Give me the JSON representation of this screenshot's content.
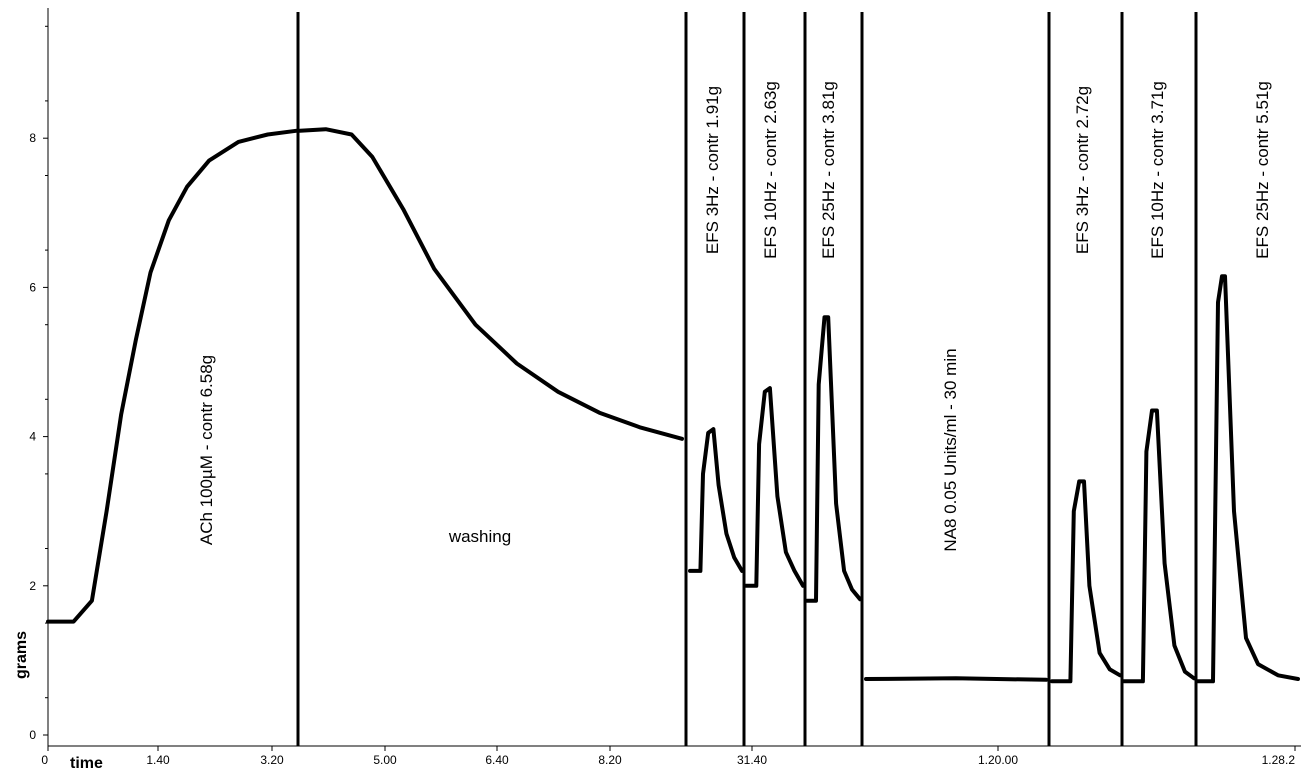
{
  "chart_data": {
    "type": "line",
    "title": "",
    "xlabel": "time",
    "ylabel": "grams",
    "ylim": [
      0,
      9.5
    ],
    "y_ticks": [
      0,
      2,
      4,
      6,
      8
    ],
    "x_tick_labels": [
      "0",
      "1.40",
      "3.20",
      "5.00",
      "6.40",
      "8.20",
      "31.40",
      "1.20.00",
      "1.28.2"
    ],
    "grid": false,
    "segments": [
      {
        "label": "ACh 100µM - contr 6.58g",
        "points": [
          [
            0,
            1.52
          ],
          [
            0.35,
            1.52
          ],
          [
            0.6,
            1.8
          ],
          [
            0.8,
            3.0
          ],
          [
            1.0,
            4.3
          ],
          [
            1.2,
            5.3
          ],
          [
            1.4,
            6.2
          ],
          [
            1.65,
            6.9
          ],
          [
            1.9,
            7.35
          ],
          [
            2.2,
            7.7
          ],
          [
            2.6,
            7.95
          ],
          [
            3.0,
            8.05
          ],
          [
            3.4,
            8.1
          ]
        ]
      },
      {
        "label": "washing",
        "points": [
          [
            0,
            8.1
          ],
          [
            0.5,
            8.12
          ],
          [
            1.0,
            8.05
          ],
          [
            1.4,
            7.75
          ],
          [
            2.0,
            7.05
          ],
          [
            2.6,
            6.25
          ],
          [
            3.4,
            5.5
          ],
          [
            4.2,
            4.98
          ],
          [
            5.0,
            4.6
          ],
          [
            5.8,
            4.32
          ],
          [
            6.6,
            4.12
          ],
          [
            7.4,
            3.97
          ]
        ]
      },
      {
        "label": "EFS 3Hz - contr 1.91g",
        "points": [
          [
            0,
            2.2
          ],
          [
            0.2,
            2.2
          ],
          [
            0.25,
            3.5
          ],
          [
            0.35,
            4.05
          ],
          [
            0.45,
            4.1
          ],
          [
            0.55,
            3.35
          ],
          [
            0.7,
            2.7
          ],
          [
            0.85,
            2.38
          ],
          [
            1.0,
            2.2
          ]
        ]
      },
      {
        "label": "EFS 10Hz - contr 2.63g",
        "points": [
          [
            0,
            2.0
          ],
          [
            0.18,
            2.0
          ],
          [
            0.23,
            3.9
          ],
          [
            0.33,
            4.6
          ],
          [
            0.42,
            4.65
          ],
          [
            0.55,
            3.2
          ],
          [
            0.7,
            2.45
          ],
          [
            0.85,
            2.2
          ],
          [
            1.0,
            2.0
          ]
        ]
      },
      {
        "label": "EFS 25Hz - contr 3.81g",
        "points": [
          [
            0,
            1.8
          ],
          [
            0.17,
            1.8
          ],
          [
            0.22,
            4.7
          ],
          [
            0.33,
            5.6
          ],
          [
            0.4,
            5.6
          ],
          [
            0.55,
            3.1
          ],
          [
            0.7,
            2.2
          ],
          [
            0.85,
            1.95
          ],
          [
            1.0,
            1.82
          ]
        ]
      },
      {
        "label": "NA8 0.05 Units/ml - 30 min",
        "points": [
          [
            0,
            0.75
          ],
          [
            0.5,
            0.76
          ],
          [
            1.0,
            0.74
          ]
        ]
      },
      {
        "label": "EFS 3Hz - contr 2.72g",
        "points": [
          [
            0,
            0.72
          ],
          [
            0.27,
            0.72
          ],
          [
            0.32,
            3.0
          ],
          [
            0.4,
            3.4
          ],
          [
            0.47,
            3.4
          ],
          [
            0.55,
            2.0
          ],
          [
            0.7,
            1.1
          ],
          [
            0.85,
            0.88
          ],
          [
            1.0,
            0.8
          ]
        ]
      },
      {
        "label": "EFS 10Hz - contr 3.71g",
        "points": [
          [
            0,
            0.72
          ],
          [
            0.27,
            0.72
          ],
          [
            0.32,
            3.8
          ],
          [
            0.4,
            4.35
          ],
          [
            0.47,
            4.35
          ],
          [
            0.58,
            2.3
          ],
          [
            0.72,
            1.2
          ],
          [
            0.87,
            0.85
          ],
          [
            1.0,
            0.76
          ]
        ]
      },
      {
        "label": "EFS 25Hz - contr 5.51g",
        "points": [
          [
            0,
            0.72
          ],
          [
            0.15,
            0.72
          ],
          [
            0.2,
            5.8
          ],
          [
            0.24,
            6.15
          ],
          [
            0.27,
            6.15
          ],
          [
            0.36,
            3.0
          ],
          [
            0.48,
            1.3
          ],
          [
            0.6,
            0.95
          ],
          [
            0.8,
            0.8
          ],
          [
            1.0,
            0.75
          ]
        ]
      }
    ]
  }
}
